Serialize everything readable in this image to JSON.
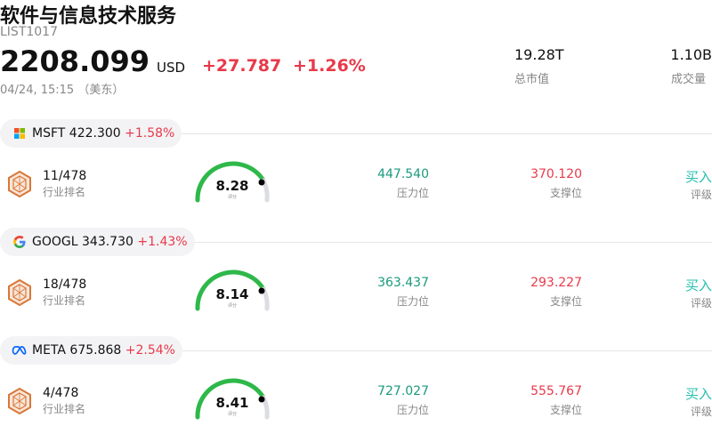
{
  "header": {
    "title": "软件与信息技术服务",
    "code": "LIST1017",
    "price": "2208.099",
    "currency": "USD",
    "change": "+27.787",
    "change_pct": "+1.26%",
    "time": "04/24, 15:15 （美东）",
    "stats": [
      {
        "value": "19.28T",
        "label": "总市值"
      },
      {
        "value": "1.10B",
        "label": "成交量"
      }
    ]
  },
  "stocks": [
    {
      "ticker": "MSFT",
      "price": "422.300",
      "change_pct": "+1.58%",
      "rank": "11/478",
      "rank_label": "行业排名",
      "score": "8.28",
      "score_label": "评分",
      "resistance": "447.540",
      "resistance_label": "压力位",
      "support": "370.120",
      "support_label": "支撑位",
      "rating": "买入",
      "rating_label": "评级"
    },
    {
      "ticker": "GOOGL",
      "price": "343.730",
      "change_pct": "+1.43%",
      "rank": "18/478",
      "rank_label": "行业排名",
      "score": "8.14",
      "score_label": "评分",
      "resistance": "363.437",
      "resistance_label": "压力位",
      "support": "293.227",
      "support_label": "支撑位",
      "rating": "买入",
      "rating_label": "评级"
    },
    {
      "ticker": "META",
      "price": "675.868",
      "change_pct": "+2.54%",
      "rank": "4/478",
      "rank_label": "行业排名",
      "score": "8.41",
      "score_label": "评分",
      "resistance": "727.027",
      "resistance_label": "压力位",
      "support": "555.767",
      "support_label": "支撑位",
      "rating": "买入",
      "rating_label": "评级"
    }
  ]
}
